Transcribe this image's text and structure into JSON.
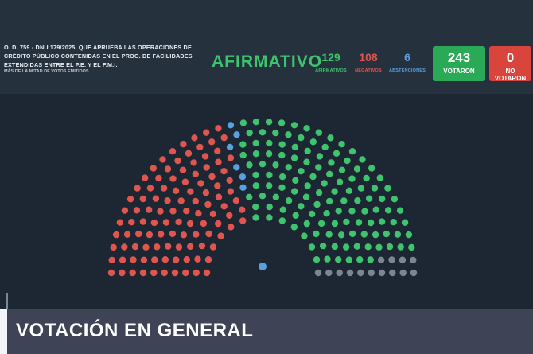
{
  "header": {
    "topic": "O. D. 759 - DNU 179/2025, QUE APRUEBA LAS OPERACIONES DE CRÉDITO PÚBLICO CONTENIDAS EN EL PROG. DE FACILIDADES EXTENDIDAS ENTRE EL P.E. Y EL F.M.I.",
    "subtopic": "MÁS DE LA MITAD DE VOTOS EMITIDOS",
    "result": "AFIRMATIVO",
    "affirmative": {
      "count": "129",
      "label": "AFIRMATIVOS"
    },
    "negative": {
      "count": "108",
      "label": "NEGATIVOS"
    },
    "abstention": {
      "count": "6",
      "label": "ABSTENCIONES"
    },
    "voted": {
      "count": "243",
      "label": "VOTARON"
    },
    "not_voted": {
      "count": "0",
      "label": "NO VOTARON"
    }
  },
  "colors": {
    "affirmative": "#3ec46d",
    "negative": "#e0564f",
    "abstention": "#5a9fe0",
    "voted_box": "#2aa956",
    "not_voted_box": "#d9453c",
    "absent_seat": "#7c8590"
  },
  "chamber": {
    "rows": 10
  },
  "banner": {
    "title": "VOTACIÓN EN GENERAL"
  }
}
